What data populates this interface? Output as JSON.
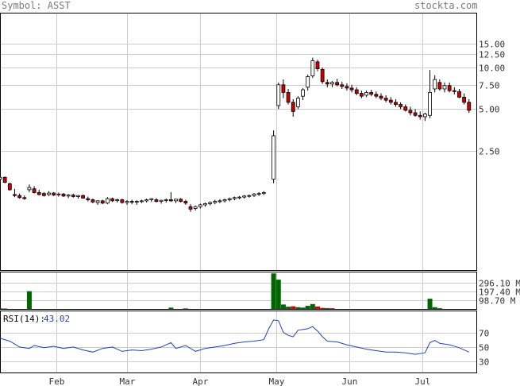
{
  "header": {
    "symbol_label": "Symbol: ASST",
    "brand": "stockta.com"
  },
  "colors": {
    "grid": "#cccccc",
    "frame": "#000000",
    "up": "#ffffff",
    "down": "#cc0000",
    "wick": "#000000",
    "volume": "#006600",
    "volume_low": "#cc0000",
    "rsi": "#2244bb",
    "axis_text": "#333333"
  },
  "chart_data": [
    {
      "type": "candlestick",
      "panel": "price",
      "scale": "log",
      "ylim": [
        0.34,
        25
      ],
      "yticks": [
        "15.00",
        "12.50",
        "10.00",
        "7.50",
        "5.00",
        "2.50"
      ],
      "ytick_values": [
        15,
        12.5,
        10,
        7.5,
        5,
        2.5
      ],
      "x_labels": [
        "Feb",
        "Mar",
        "Apr",
        "May",
        "Jun",
        "Jul"
      ],
      "x_label_days": [
        23,
        52,
        82,
        113,
        143,
        173
      ],
      "grid": true,
      "candles": [
        [
          0,
          1.55,
          1.62,
          1.5,
          1.6
        ],
        [
          2,
          1.6,
          1.62,
          1.45,
          1.47
        ],
        [
          4,
          1.44,
          1.46,
          1.28,
          1.3
        ],
        [
          6,
          1.2,
          1.32,
          1.15,
          1.18
        ],
        [
          8,
          1.18,
          1.22,
          1.12,
          1.14
        ],
        [
          10,
          1.14,
          1.18,
          1.1,
          1.12
        ],
        [
          12,
          1.3,
          1.42,
          1.25,
          1.35
        ],
        [
          14,
          1.32,
          1.38,
          1.22,
          1.24
        ],
        [
          16,
          1.24,
          1.3,
          1.18,
          1.2
        ],
        [
          18,
          1.22,
          1.25,
          1.16,
          1.18
        ],
        [
          20,
          1.2,
          1.27,
          1.17,
          1.23
        ],
        [
          22,
          1.23,
          1.25,
          1.17,
          1.19
        ],
        [
          24,
          1.2,
          1.24,
          1.16,
          1.21
        ],
        [
          26,
          1.21,
          1.23,
          1.15,
          1.17
        ],
        [
          28,
          1.17,
          1.21,
          1.13,
          1.19
        ],
        [
          30,
          1.19,
          1.22,
          1.14,
          1.16
        ],
        [
          32,
          1.16,
          1.19,
          1.12,
          1.18
        ],
        [
          34,
          1.18,
          1.2,
          1.12,
          1.13
        ],
        [
          36,
          1.12,
          1.16,
          1.07,
          1.1
        ],
        [
          38,
          1.1,
          1.12,
          1.04,
          1.06
        ],
        [
          40,
          1.05,
          1.09,
          1.01,
          1.08
        ],
        [
          42,
          1.08,
          1.1,
          1.02,
          1.04
        ],
        [
          44,
          1.04,
          1.15,
          1.02,
          1.12
        ],
        [
          46,
          1.12,
          1.14,
          1.06,
          1.08
        ],
        [
          48,
          1.09,
          1.12,
          1.05,
          1.1
        ],
        [
          50,
          1.1,
          1.12,
          1.03,
          1.05
        ],
        [
          52,
          1.05,
          1.09,
          1.01,
          1.07
        ],
        [
          54,
          1.07,
          1.1,
          1.02,
          1.06
        ],
        [
          56,
          1.06,
          1.09,
          1.01,
          1.07
        ],
        [
          58,
          1.07,
          1.1,
          1.04,
          1.08
        ],
        [
          60,
          1.08,
          1.12,
          1.05,
          1.1
        ],
        [
          62,
          1.1,
          1.13,
          1.06,
          1.12
        ],
        [
          64,
          1.1,
          1.13,
          1.05,
          1.07
        ],
        [
          66,
          1.07,
          1.1,
          1.03,
          1.09
        ],
        [
          68,
          1.09,
          1.12,
          1.05,
          1.1
        ],
        [
          70,
          1.1,
          1.25,
          1.06,
          1.08
        ],
        [
          72,
          1.08,
          1.12,
          1.04,
          1.11
        ],
        [
          74,
          1.11,
          1.13,
          1.05,
          1.07
        ],
        [
          76,
          1.07,
          1.1,
          1.01,
          1.04
        ],
        [
          78,
          0.98,
          1.02,
          0.9,
          0.94
        ],
        [
          80,
          0.95,
          1.0,
          0.92,
          0.98
        ],
        [
          82,
          0.98,
          1.03,
          0.95,
          1.01
        ],
        [
          84,
          1.01,
          1.05,
          0.98,
          1.03
        ],
        [
          86,
          1.03,
          1.07,
          1.0,
          1.05
        ],
        [
          88,
          1.05,
          1.1,
          1.02,
          1.07
        ],
        [
          90,
          1.07,
          1.11,
          1.04,
          1.08
        ],
        [
          92,
          1.08,
          1.12,
          1.05,
          1.1
        ],
        [
          94,
          1.1,
          1.14,
          1.07,
          1.12
        ],
        [
          96,
          1.12,
          1.16,
          1.09,
          1.14
        ],
        [
          98,
          1.14,
          1.17,
          1.11,
          1.15
        ],
        [
          100,
          1.15,
          1.19,
          1.12,
          1.17
        ],
        [
          102,
          1.17,
          1.2,
          1.14,
          1.18
        ],
        [
          104,
          1.18,
          1.23,
          1.15,
          1.21
        ],
        [
          106,
          1.21,
          1.25,
          1.17,
          1.22
        ],
        [
          108,
          1.22,
          1.27,
          1.19,
          1.24
        ],
        [
          112,
          1.55,
          3.5,
          1.45,
          3.2
        ],
        [
          114,
          5.3,
          7.8,
          5.0,
          7.5
        ],
        [
          116,
          7.5,
          8.2,
          6.0,
          6.6
        ],
        [
          118,
          6.6,
          7.0,
          5.4,
          5.6
        ],
        [
          120,
          5.6,
          5.9,
          4.4,
          4.8
        ],
        [
          122,
          5.2,
          6.2,
          5.0,
          6.0
        ],
        [
          124,
          6.2,
          7.1,
          5.8,
          6.9
        ],
        [
          126,
          7.2,
          8.9,
          6.8,
          8.6
        ],
        [
          128,
          8.7,
          11.8,
          8.4,
          11.2
        ],
        [
          130,
          11.0,
          11.4,
          9.4,
          9.8
        ],
        [
          132,
          9.7,
          10.0,
          7.6,
          7.9
        ],
        [
          134,
          7.8,
          8.2,
          7.2,
          7.6
        ],
        [
          136,
          7.6,
          8.0,
          7.2,
          7.8
        ],
        [
          138,
          7.8,
          8.3,
          7.3,
          7.5
        ],
        [
          140,
          7.5,
          7.9,
          7.0,
          7.3
        ],
        [
          142,
          7.3,
          7.7,
          6.8,
          7.1
        ],
        [
          144,
          7.1,
          7.5,
          6.6,
          6.9
        ],
        [
          146,
          6.9,
          7.2,
          6.3,
          6.5
        ],
        [
          148,
          6.5,
          6.8,
          6.0,
          6.2
        ],
        [
          150,
          6.3,
          6.8,
          6.1,
          6.6
        ],
        [
          152,
          6.6,
          6.9,
          6.2,
          6.4
        ],
        [
          154,
          6.4,
          6.7,
          6.0,
          6.2
        ],
        [
          156,
          6.2,
          6.5,
          5.8,
          6.0
        ],
        [
          158,
          6.0,
          6.3,
          5.6,
          5.8
        ],
        [
          160,
          5.8,
          6.1,
          5.4,
          5.6
        ],
        [
          162,
          5.6,
          5.9,
          5.2,
          5.4
        ],
        [
          164,
          5.4,
          5.6,
          5.0,
          5.2
        ],
        [
          166,
          5.2,
          5.4,
          4.8,
          4.9
        ],
        [
          168,
          4.9,
          5.2,
          4.5,
          4.7
        ],
        [
          170,
          4.7,
          5.0,
          4.4,
          4.5
        ],
        [
          172,
          4.5,
          4.8,
          4.2,
          4.4
        ],
        [
          174,
          4.4,
          4.7,
          4.1,
          4.6
        ],
        [
          176,
          4.5,
          9.6,
          4.3,
          6.6
        ],
        [
          178,
          7.0,
          8.8,
          6.6,
          8.2
        ],
        [
          180,
          7.8,
          8.2,
          6.8,
          7.0
        ],
        [
          182,
          7.0,
          7.8,
          6.6,
          7.4
        ],
        [
          184,
          7.4,
          7.8,
          6.6,
          6.8
        ],
        [
          186,
          6.8,
          7.2,
          6.4,
          6.7
        ],
        [
          188,
          6.7,
          7.0,
          6.0,
          6.1
        ],
        [
          190,
          6.1,
          6.5,
          5.4,
          5.6
        ],
        [
          192,
          5.6,
          5.9,
          4.7,
          4.9
        ]
      ]
    },
    {
      "type": "bar",
      "panel": "volume",
      "unit": "M",
      "ylim": [
        0,
        420
      ],
      "yticks": [
        "296.10 M",
        "197.40 M",
        "98.70 M"
      ],
      "ytick_values": [
        296.1,
        197.4,
        98.7
      ],
      "bars": [
        [
          0,
          6,
          "g"
        ],
        [
          2,
          5,
          "g"
        ],
        [
          12,
          200,
          "g"
        ],
        [
          70,
          15,
          "g"
        ],
        [
          76,
          6,
          "g"
        ],
        [
          112,
          400,
          "g"
        ],
        [
          114,
          330,
          "g"
        ],
        [
          116,
          50,
          "g"
        ],
        [
          118,
          25,
          "g"
        ],
        [
          120,
          30,
          "r"
        ],
        [
          122,
          20,
          "g"
        ],
        [
          124,
          15,
          "g"
        ],
        [
          126,
          35,
          "g"
        ],
        [
          128,
          55,
          "g"
        ],
        [
          130,
          28,
          "r"
        ],
        [
          132,
          12,
          "r"
        ],
        [
          134,
          10,
          "g"
        ],
        [
          136,
          8,
          "r"
        ],
        [
          176,
          115,
          "g"
        ],
        [
          178,
          20,
          "g"
        ],
        [
          180,
          8,
          "g"
        ]
      ]
    },
    {
      "type": "line",
      "panel": "rsi",
      "label": "RSI(14):",
      "value": "43.02",
      "ylim": [
        15,
        100
      ],
      "yticks": [
        "70",
        "50",
        "30"
      ],
      "ytick_values": [
        70,
        50,
        30
      ],
      "points": [
        [
          0,
          62
        ],
        [
          4,
          58
        ],
        [
          8,
          50
        ],
        [
          12,
          48
        ],
        [
          14,
          52
        ],
        [
          18,
          49
        ],
        [
          22,
          51
        ],
        [
          26,
          48
        ],
        [
          30,
          50
        ],
        [
          34,
          46
        ],
        [
          38,
          43
        ],
        [
          42,
          48
        ],
        [
          46,
          50
        ],
        [
          50,
          44
        ],
        [
          54,
          46
        ],
        [
          58,
          45
        ],
        [
          62,
          47
        ],
        [
          66,
          50
        ],
        [
          70,
          56
        ],
        [
          72,
          48
        ],
        [
          76,
          52
        ],
        [
          80,
          44
        ],
        [
          84,
          48
        ],
        [
          88,
          50
        ],
        [
          92,
          52
        ],
        [
          96,
          55
        ],
        [
          100,
          57
        ],
        [
          104,
          58
        ],
        [
          108,
          60
        ],
        [
          110,
          75
        ],
        [
          112,
          87
        ],
        [
          114,
          86
        ],
        [
          116,
          70
        ],
        [
          118,
          66
        ],
        [
          120,
          64
        ],
        [
          122,
          73
        ],
        [
          126,
          75
        ],
        [
          128,
          78
        ],
        [
          130,
          72
        ],
        [
          132,
          64
        ],
        [
          134,
          58
        ],
        [
          138,
          57
        ],
        [
          142,
          53
        ],
        [
          146,
          50
        ],
        [
          150,
          47
        ],
        [
          154,
          45
        ],
        [
          158,
          43
        ],
        [
          162,
          43
        ],
        [
          166,
          42
        ],
        [
          170,
          40
        ],
        [
          174,
          42
        ],
        [
          176,
          56
        ],
        [
          178,
          59
        ],
        [
          180,
          55
        ],
        [
          184,
          53
        ],
        [
          188,
          49
        ],
        [
          190,
          46
        ],
        [
          192,
          43
        ]
      ]
    }
  ]
}
